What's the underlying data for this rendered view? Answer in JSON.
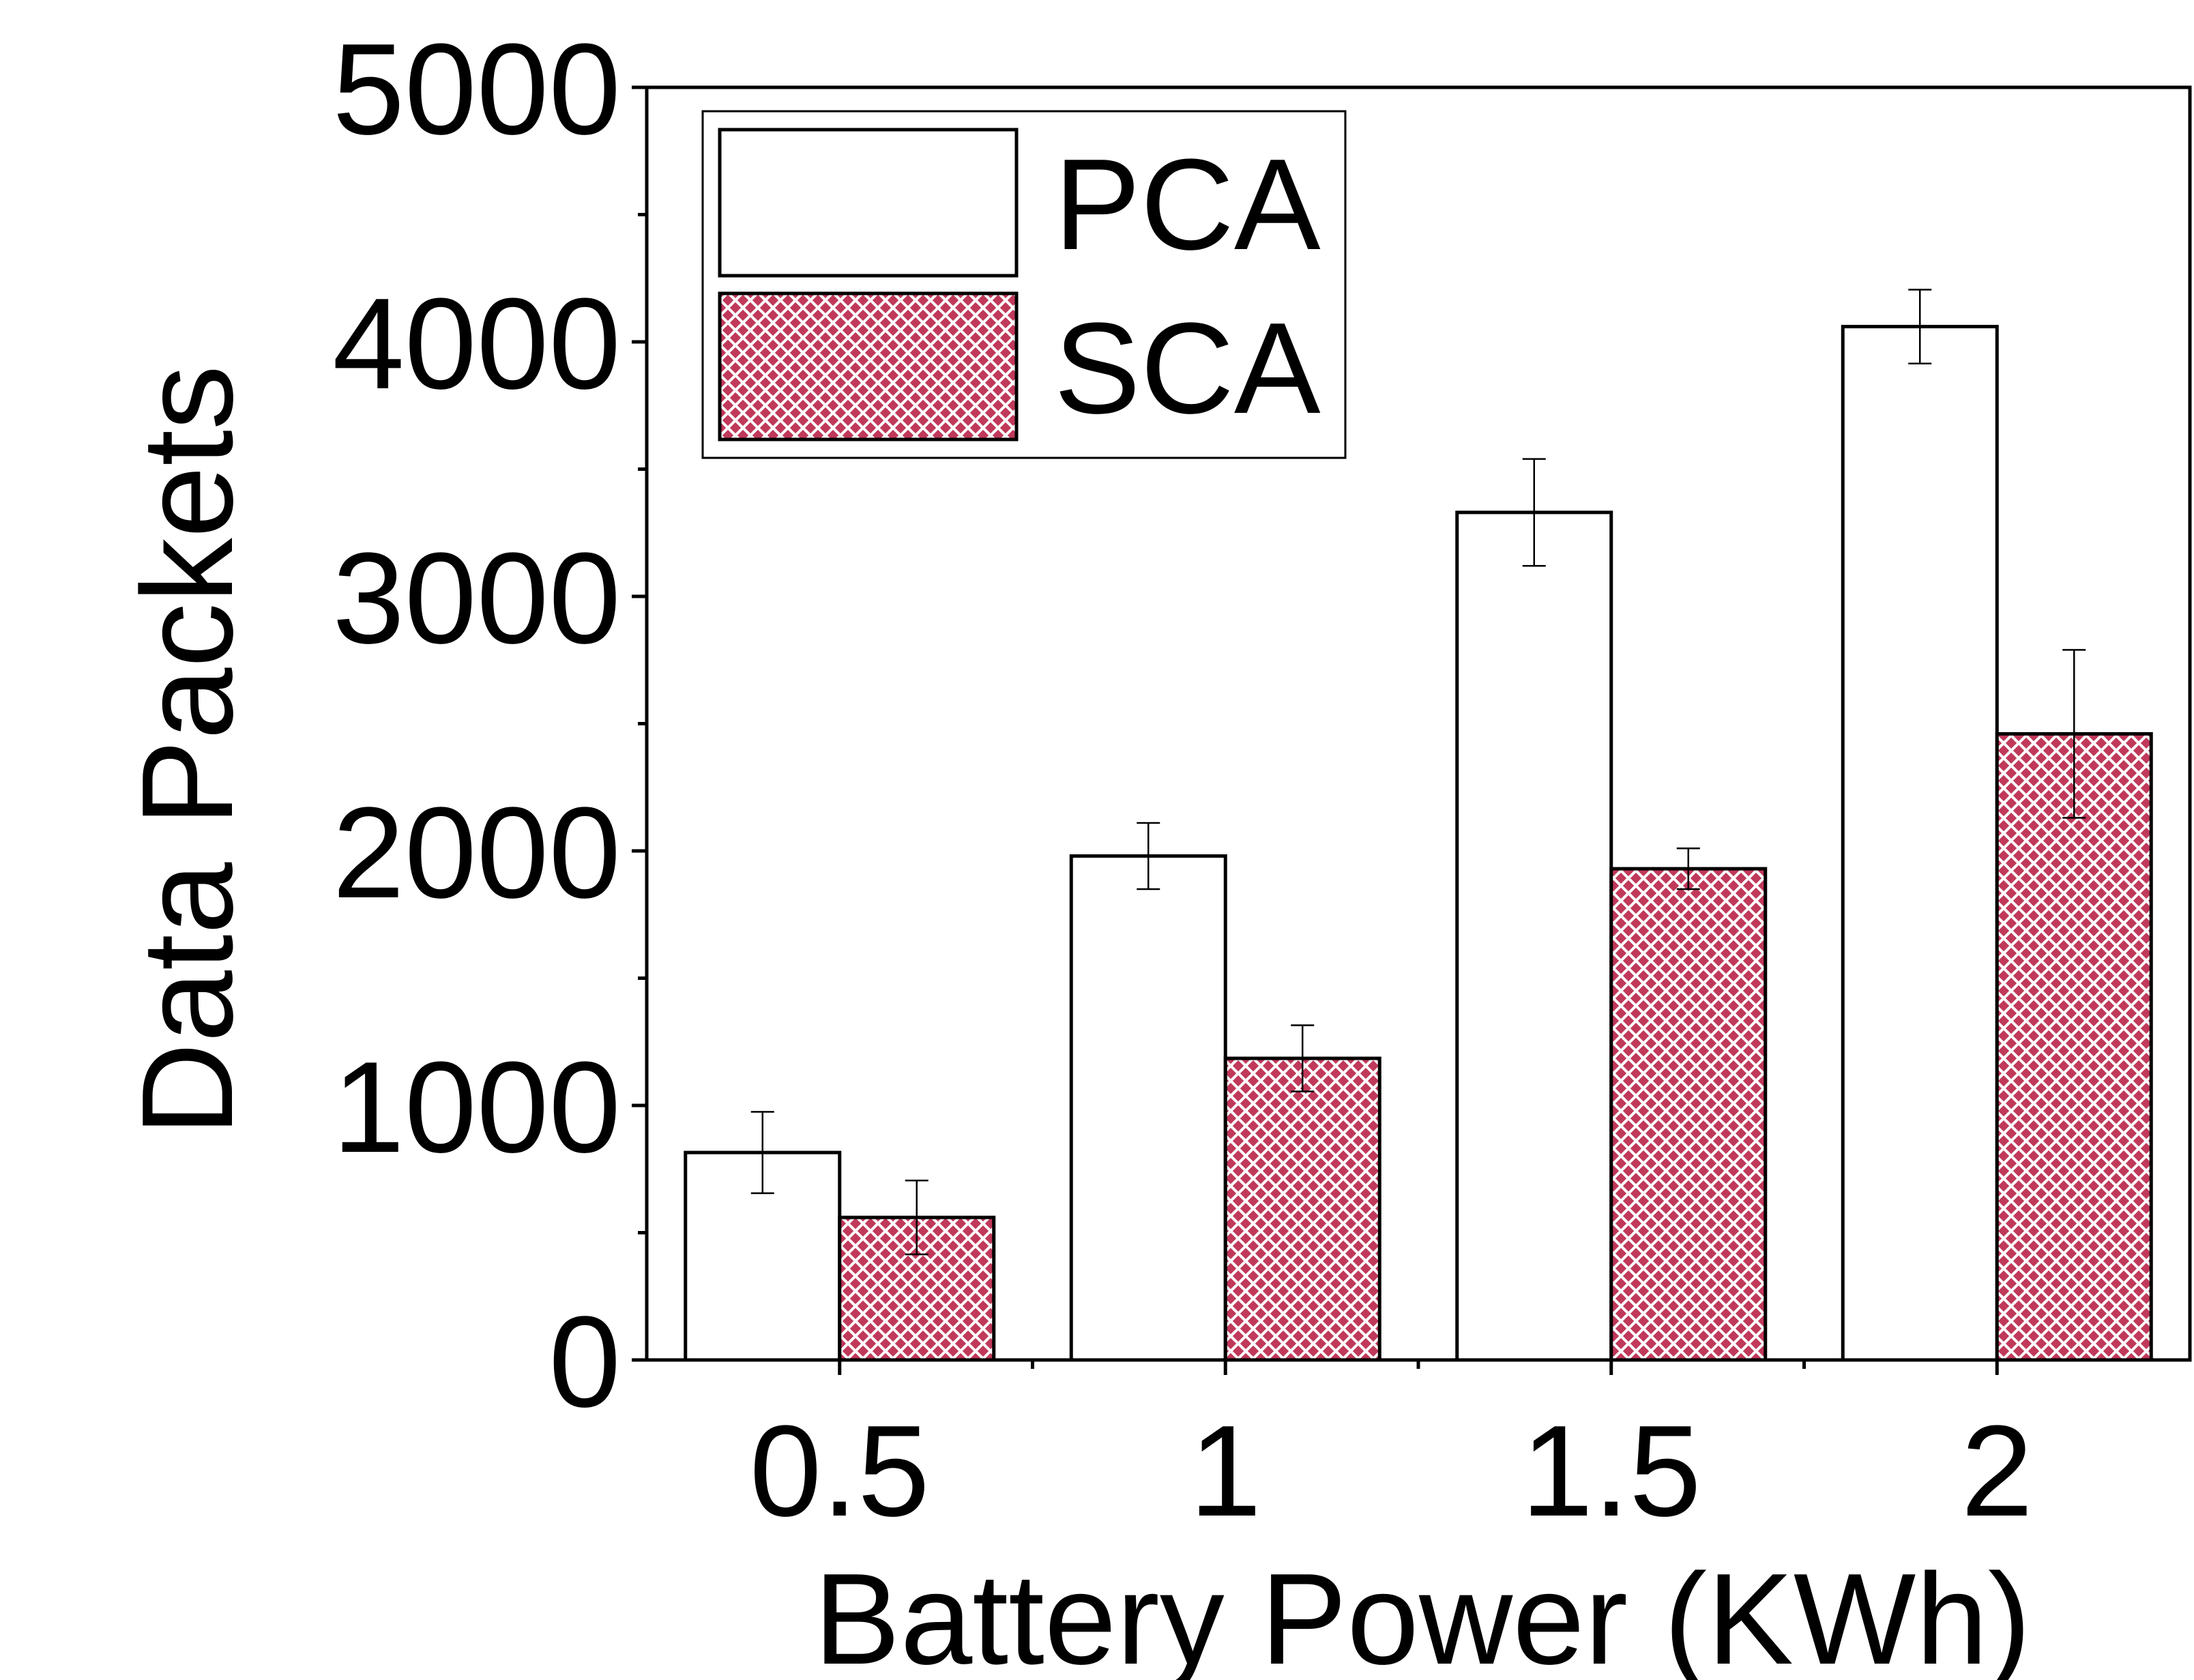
{
  "chart_data": {
    "type": "bar",
    "xlabel": "Battery Power (KWh)",
    "ylabel": "Data Packets",
    "categories": [
      "0.5",
      "1",
      "1.5",
      "2"
    ],
    "ylim": [
      0,
      5000
    ],
    "yticks": [
      "0",
      "1000",
      "2000",
      "3000",
      "4000",
      "5000"
    ],
    "grid": false,
    "legend_position": "top-left",
    "series": [
      {
        "name": "PCA",
        "values": [
          815,
          1980,
          3330,
          4060
        ],
        "error": [
          160,
          130,
          210,
          145
        ],
        "fill": "#ffffff",
        "pattern": "none"
      },
      {
        "name": "SCA",
        "values": [
          560,
          1185,
          1930,
          2460
        ],
        "error": [
          145,
          130,
          80,
          330
        ],
        "fill": "#c0395a",
        "pattern": "crosshatch"
      }
    ]
  }
}
